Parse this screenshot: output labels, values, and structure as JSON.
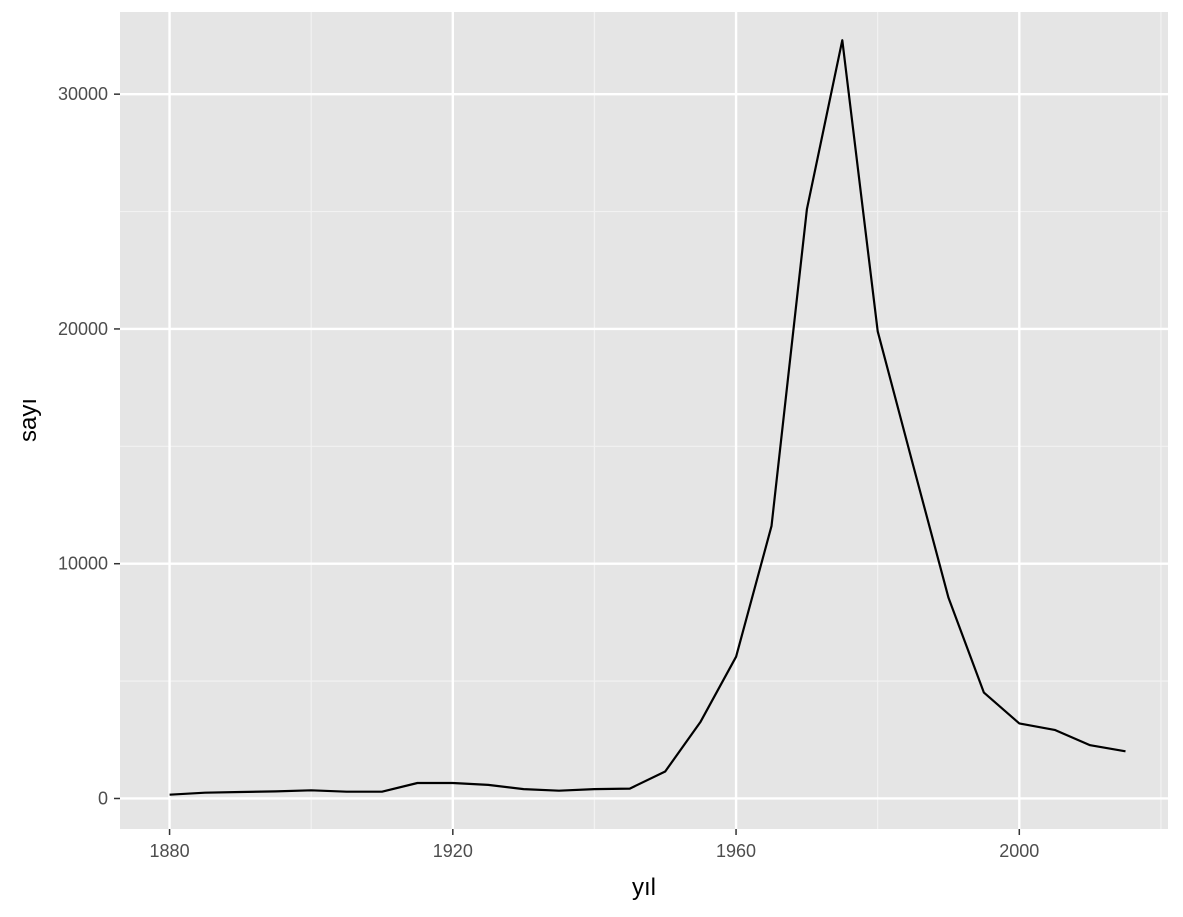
{
  "chart_data": {
    "type": "line",
    "title": "",
    "xlabel": "yıl",
    "ylabel": "sayı",
    "xlim": [
      1873,
      2021
    ],
    "ylim": [
      -1300,
      33500
    ],
    "x_ticks": [
      1880,
      1920,
      1960,
      2000
    ],
    "y_ticks": [
      0,
      10000,
      20000,
      30000
    ],
    "x_tick_labels": [
      "1880",
      "1920",
      "1960",
      "2000"
    ],
    "y_tick_labels": [
      "0",
      "10000",
      "20000",
      "30000"
    ],
    "grid": true,
    "line_color": "#000000",
    "panel_color": "#e5e5e5",
    "x": [
      1880,
      1885,
      1890,
      1895,
      1900,
      1905,
      1910,
      1915,
      1920,
      1925,
      1930,
      1935,
      1940,
      1945,
      1950,
      1955,
      1960,
      1965,
      1970,
      1975,
      1980,
      1985,
      1990,
      1995,
      2000,
      2005,
      2010,
      2015
    ],
    "y": [
      160,
      245,
      275,
      300,
      350,
      290,
      290,
      660,
      660,
      580,
      400,
      330,
      400,
      420,
      1150,
      3270,
      6040,
      11600,
      25100,
      32300,
      19900,
      14200,
      8550,
      4510,
      3200,
      2920,
      2270,
      2010
    ]
  }
}
